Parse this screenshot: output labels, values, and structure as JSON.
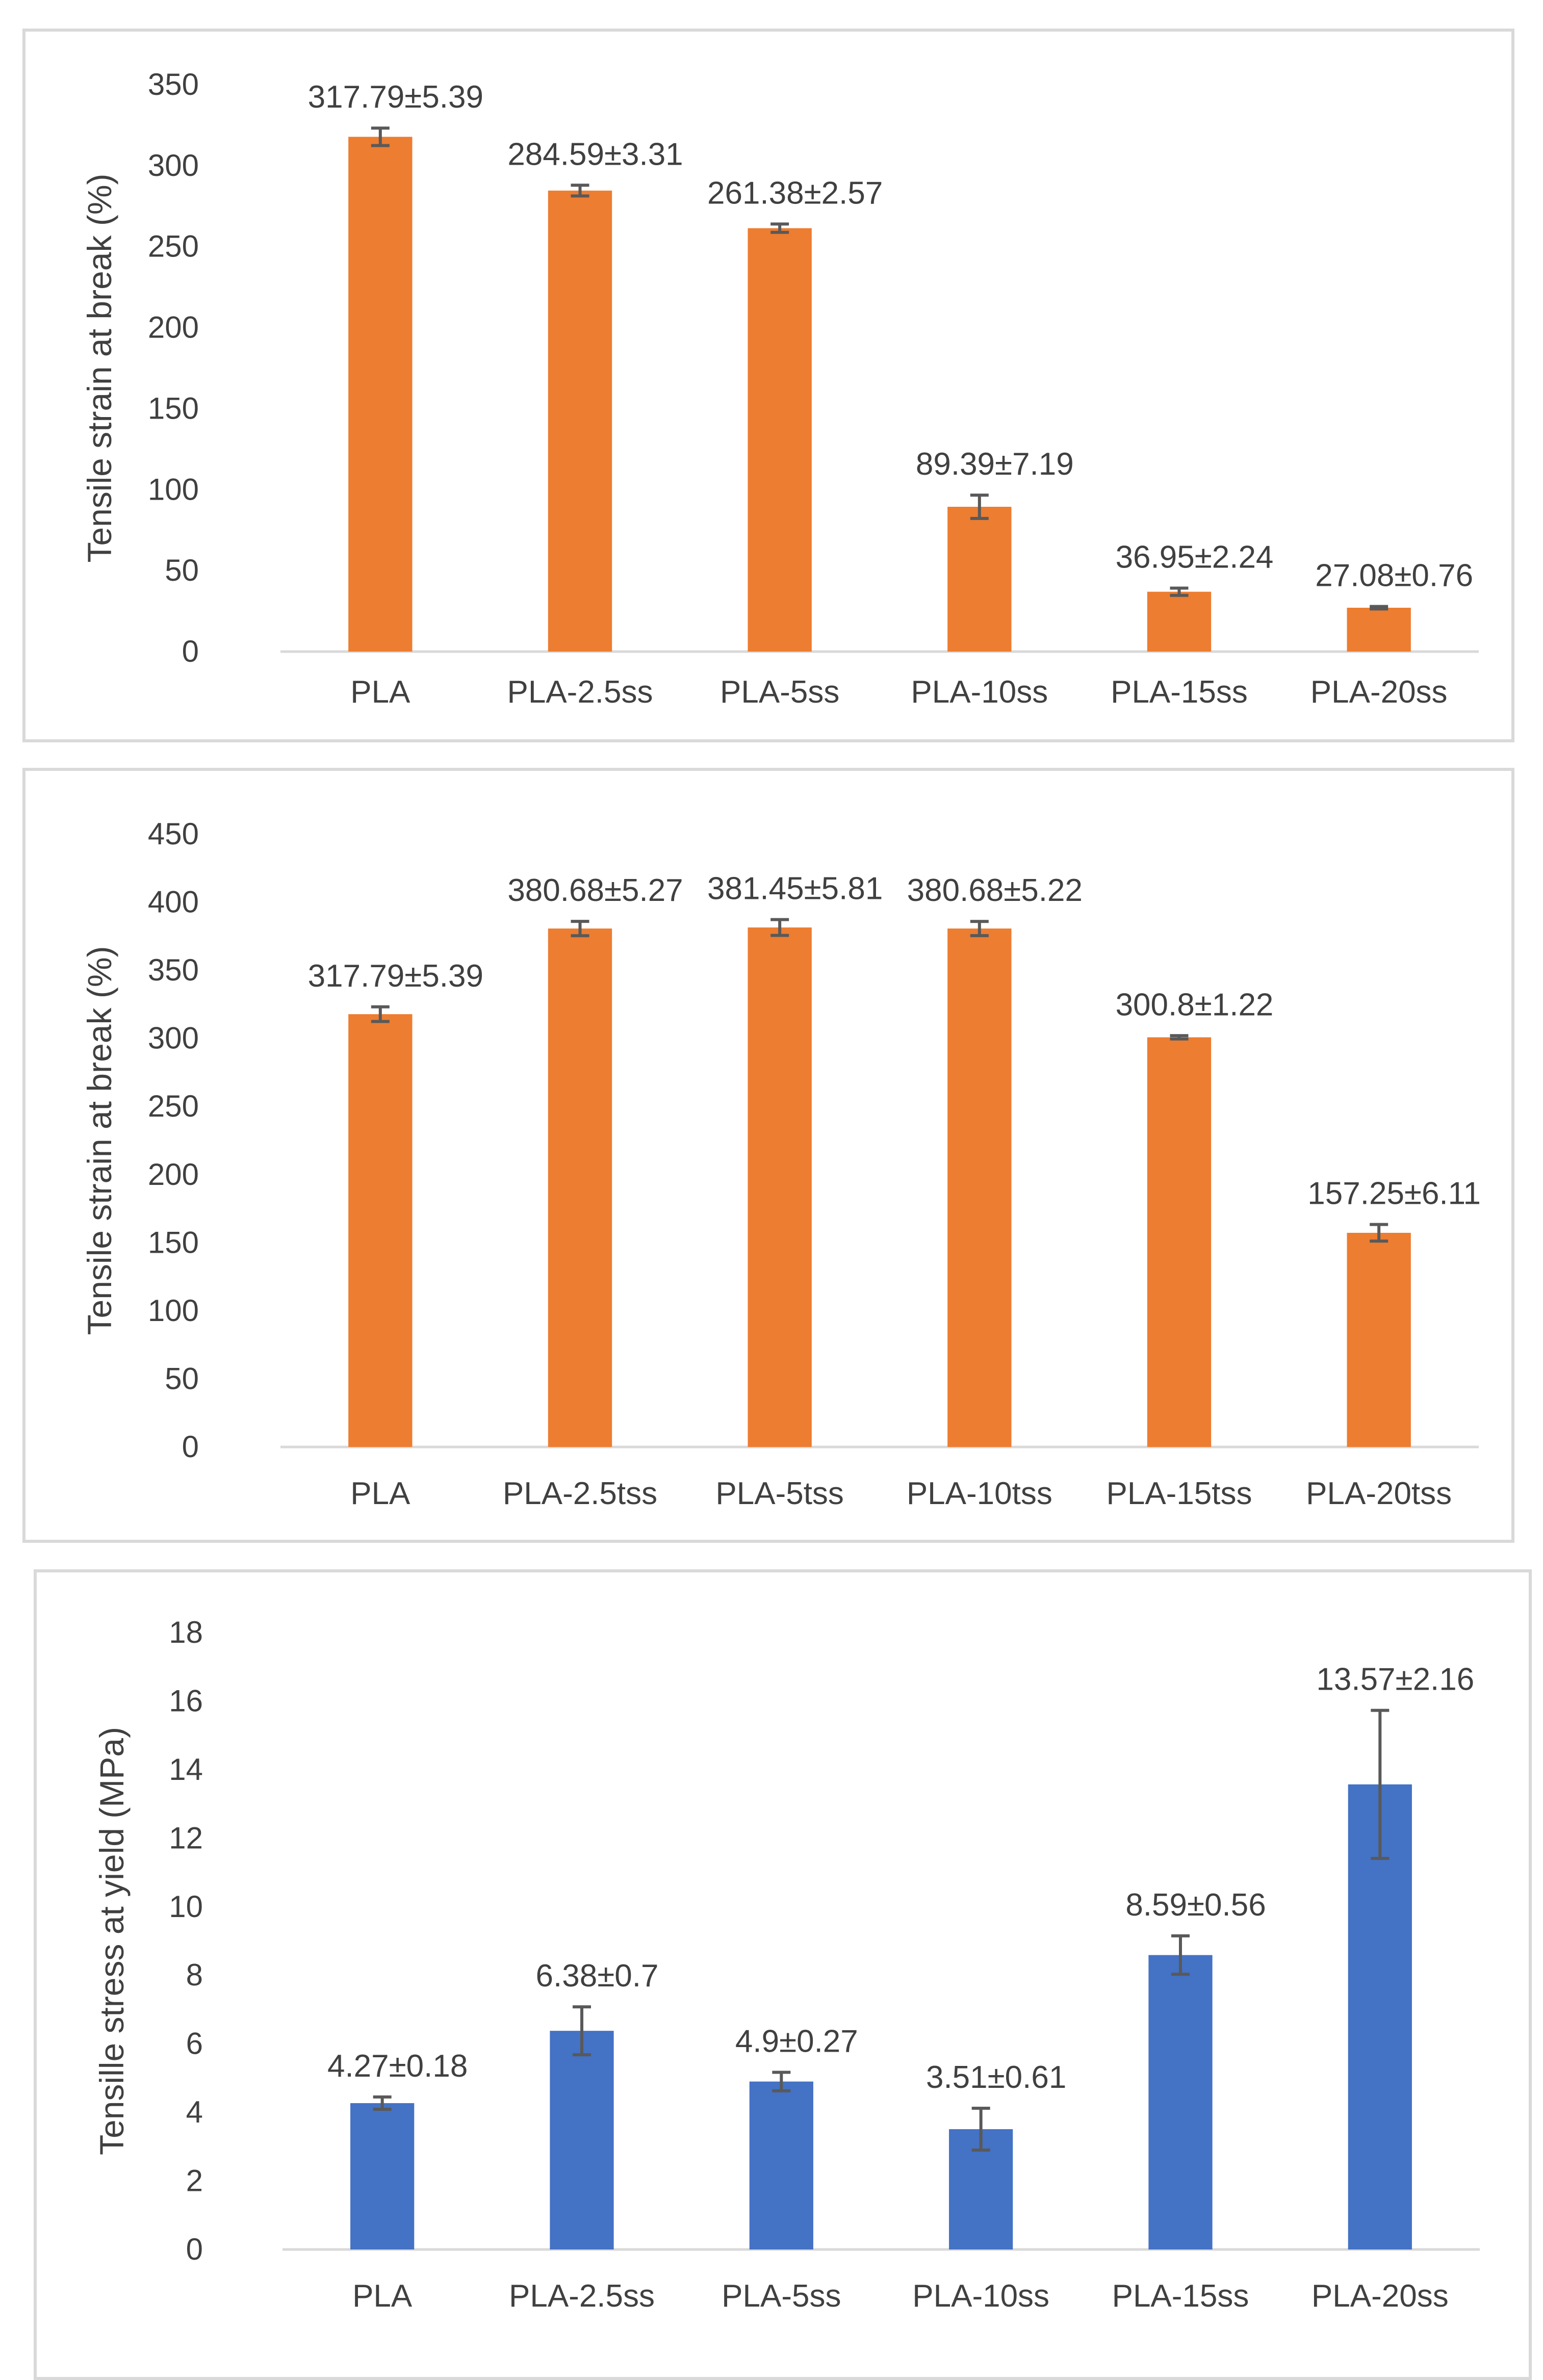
{
  "chart_data": [
    {
      "type": "bar",
      "ylabel": "Tensile strain at break (%)",
      "xlabel": "",
      "ylim": [
        0,
        350
      ],
      "ytick_step": 50,
      "bar_color": "#ED7D31",
      "categories": [
        "PLA",
        "PLA-2.5ss",
        "PLA-5ss",
        "PLA-10ss",
        "PLA-15ss",
        "PLA-20ss"
      ],
      "values": [
        317.79,
        284.59,
        261.38,
        89.39,
        36.95,
        27.08
      ],
      "errors": [
        5.39,
        3.31,
        2.57,
        7.19,
        2.24,
        0.76
      ],
      "labels": [
        "317.79±5.39",
        "284.59±3.31",
        "261.38±2.57",
        "89.39±7.19",
        "36.95±2.24",
        "27.08±0.76"
      ]
    },
    {
      "type": "bar",
      "ylabel": "Tensile strain at break (%)",
      "xlabel": "",
      "ylim": [
        0,
        450
      ],
      "ytick_step": 50,
      "bar_color": "#ED7D31",
      "categories": [
        "PLA",
        "PLA-2.5tss",
        "PLA-5tss",
        "PLA-10tss",
        "PLA-15tss",
        "PLA-20tss"
      ],
      "values": [
        317.79,
        380.68,
        381.45,
        380.68,
        300.8,
        157.25
      ],
      "errors": [
        5.39,
        5.27,
        5.81,
        5.22,
        1.22,
        6.11
      ],
      "labels": [
        "317.79±5.39",
        "380.68±5.27",
        "381.45±5.81",
        "380.68±5.22",
        "300.8±1.22",
        "157.25±6.11"
      ]
    },
    {
      "type": "bar",
      "ylabel": "Tensille stress at yield (MPa)",
      "xlabel": "",
      "ylim": [
        0,
        18
      ],
      "ytick_step": 2,
      "bar_color": "#4472C4",
      "categories": [
        "PLA",
        "PLA-2.5ss",
        "PLA-5ss",
        "PLA-10ss",
        "PLA-15ss",
        "PLA-20ss"
      ],
      "values": [
        4.27,
        6.38,
        4.9,
        3.51,
        8.59,
        13.57
      ],
      "errors": [
        0.18,
        0.7,
        0.27,
        0.61,
        0.56,
        2.16
      ],
      "labels": [
        "4.27±0.18",
        "6.38±0.7",
        "4.9±0.27",
        "3.51±0.61",
        "8.59±0.56",
        "13.57±2.16"
      ]
    }
  ]
}
